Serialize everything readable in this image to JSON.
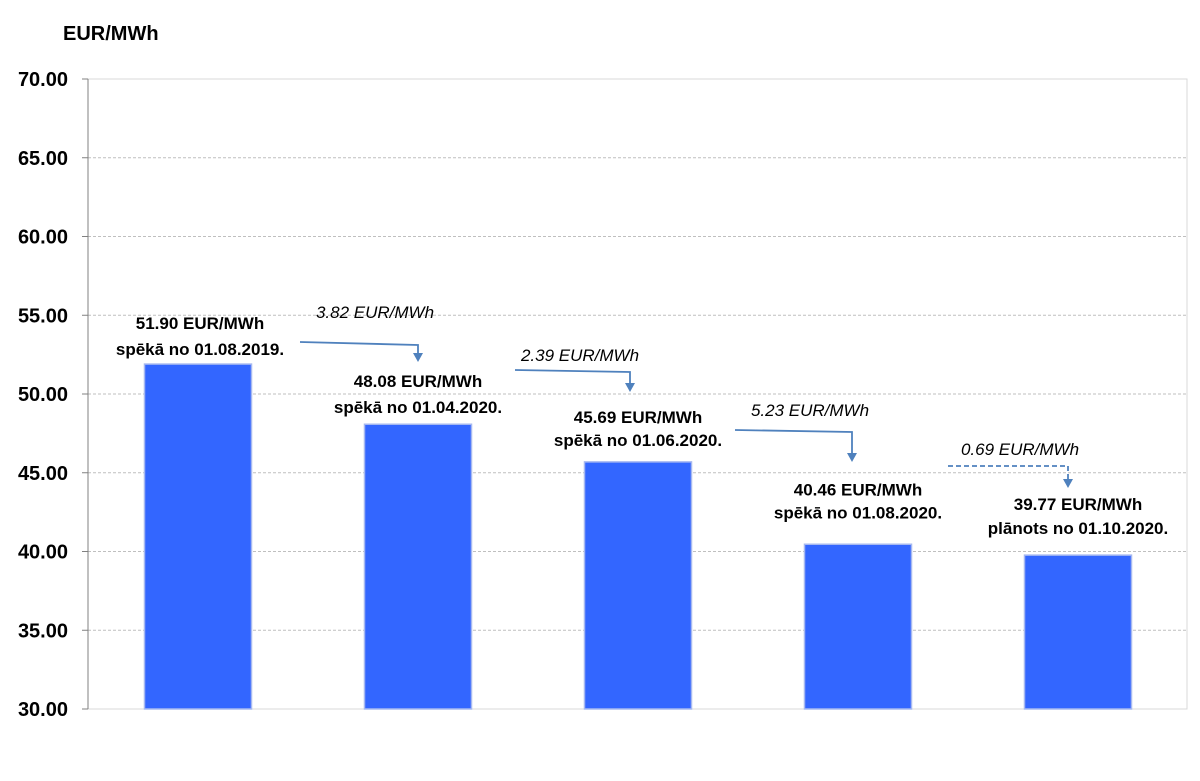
{
  "chart_data": {
    "type": "bar",
    "title": "",
    "ylabel": "EUR/MWh",
    "xlabel": "",
    "ylim": [
      30,
      70
    ],
    "yticks": [
      "30.00",
      "35.00",
      "40.00",
      "45.00",
      "50.00",
      "55.00",
      "60.00",
      "65.00",
      "70.00"
    ],
    "grid": true,
    "bar_color": "#3366FF",
    "arrow_color": "#4F81BD",
    "values": [
      51.9,
      48.08,
      45.69,
      40.46,
      39.77
    ],
    "bar_labels": [
      [
        "51.90 EUR/MWh",
        "spēkā no 01.08.2019."
      ],
      [
        "48.08 EUR/MWh",
        "spēkā no 01.04.2020."
      ],
      [
        "45.69 EUR/MWh",
        "spēkā no 01.06.2020."
      ],
      [
        "40.46 EUR/MWh",
        "spēkā no 01.08.2020."
      ],
      [
        "39.77 EUR/MWh",
        "plānots no 01.10.2020."
      ]
    ],
    "changes": [
      {
        "label": "3.82 EUR/MWh",
        "dashed": false
      },
      {
        "label": "2.39 EUR/MWh",
        "dashed": false
      },
      {
        "label": "5.23 EUR/MWh",
        "dashed": false
      },
      {
        "label": "0.69 EUR/MWh",
        "dashed": true
      }
    ]
  }
}
